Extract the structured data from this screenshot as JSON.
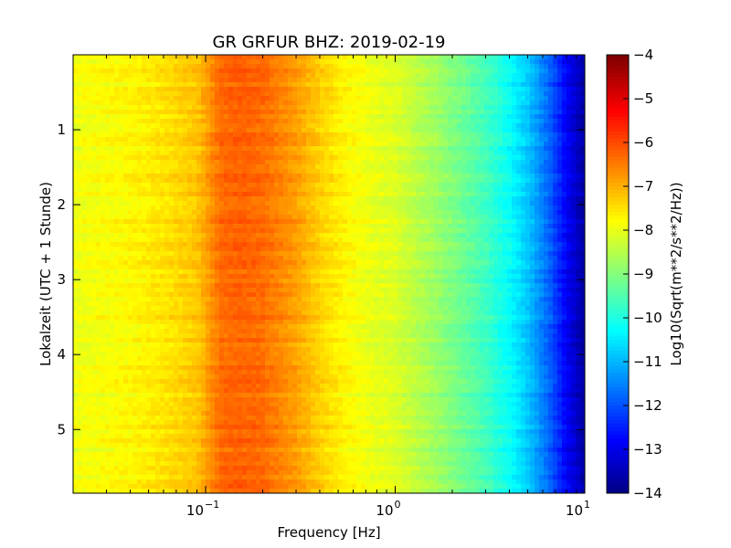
{
  "chart_data": {
    "type": "heatmap",
    "title": "GR GRFUR BHZ: 2019-02-19",
    "xlabel": "Frequency [Hz]",
    "ylabel": "Lokalzeit (UTC + 1 Stunde)",
    "x_scale": "log",
    "xlim": [
      0.02,
      10
    ],
    "x_ticks": [
      {
        "value": 0.1,
        "base": "10",
        "exp": "−1"
      },
      {
        "value": 1,
        "base": "10",
        "exp": "0"
      },
      {
        "value": 10,
        "base": "10",
        "exp": "1"
      }
    ],
    "ylim": [
      0,
      5.85
    ],
    "y_inverted": true,
    "y_ticks": [
      {
        "value": 1,
        "label": "1"
      },
      {
        "value": 2,
        "label": "2"
      },
      {
        "value": 3,
        "label": "3"
      },
      {
        "value": 4,
        "label": "4"
      },
      {
        "value": 5,
        "label": "5"
      }
    ],
    "colorbar": {
      "label": "Log10(Sqrt(m**2/s**2/Hz))",
      "range": [
        -14,
        -4
      ],
      "colormap": "jet",
      "ticks": [
        {
          "value": -4,
          "label": "−4"
        },
        {
          "value": -5,
          "label": "−5"
        },
        {
          "value": -6,
          "label": "−6"
        },
        {
          "value": -7,
          "label": "−7"
        },
        {
          "value": -8,
          "label": "−8"
        },
        {
          "value": -9,
          "label": "−9"
        },
        {
          "value": -10,
          "label": "−10"
        },
        {
          "value": -11,
          "label": "−11"
        },
        {
          "value": -12,
          "label": "−12"
        },
        {
          "value": -13,
          "label": "−13"
        },
        {
          "value": -14,
          "label": "−14"
        }
      ]
    },
    "spectrum_profile": [
      {
        "f": 0.02,
        "v": -7.9
      },
      {
        "f": 0.04,
        "v": -7.7
      },
      {
        "f": 0.06,
        "v": -7.5
      },
      {
        "f": 0.09,
        "v": -7.2
      },
      {
        "f": 0.12,
        "v": -6.3
      },
      {
        "f": 0.15,
        "v": -6.2
      },
      {
        "f": 0.2,
        "v": -6.3
      },
      {
        "f": 0.3,
        "v": -6.8
      },
      {
        "f": 0.4,
        "v": -7.3
      },
      {
        "f": 0.55,
        "v": -7.7
      },
      {
        "f": 0.8,
        "v": -8.0
      },
      {
        "f": 1,
        "v": -8.1
      },
      {
        "f": 1.5,
        "v": -8.6
      },
      {
        "f": 2,
        "v": -9.0
      },
      {
        "f": 3,
        "v": -9.6
      },
      {
        "f": 4,
        "v": -10.2
      },
      {
        "f": 5,
        "v": -10.8
      },
      {
        "f": 6.5,
        "v": -11.8
      },
      {
        "f": 8,
        "v": -12.8
      },
      {
        "f": 10,
        "v": -13.7
      }
    ]
  }
}
